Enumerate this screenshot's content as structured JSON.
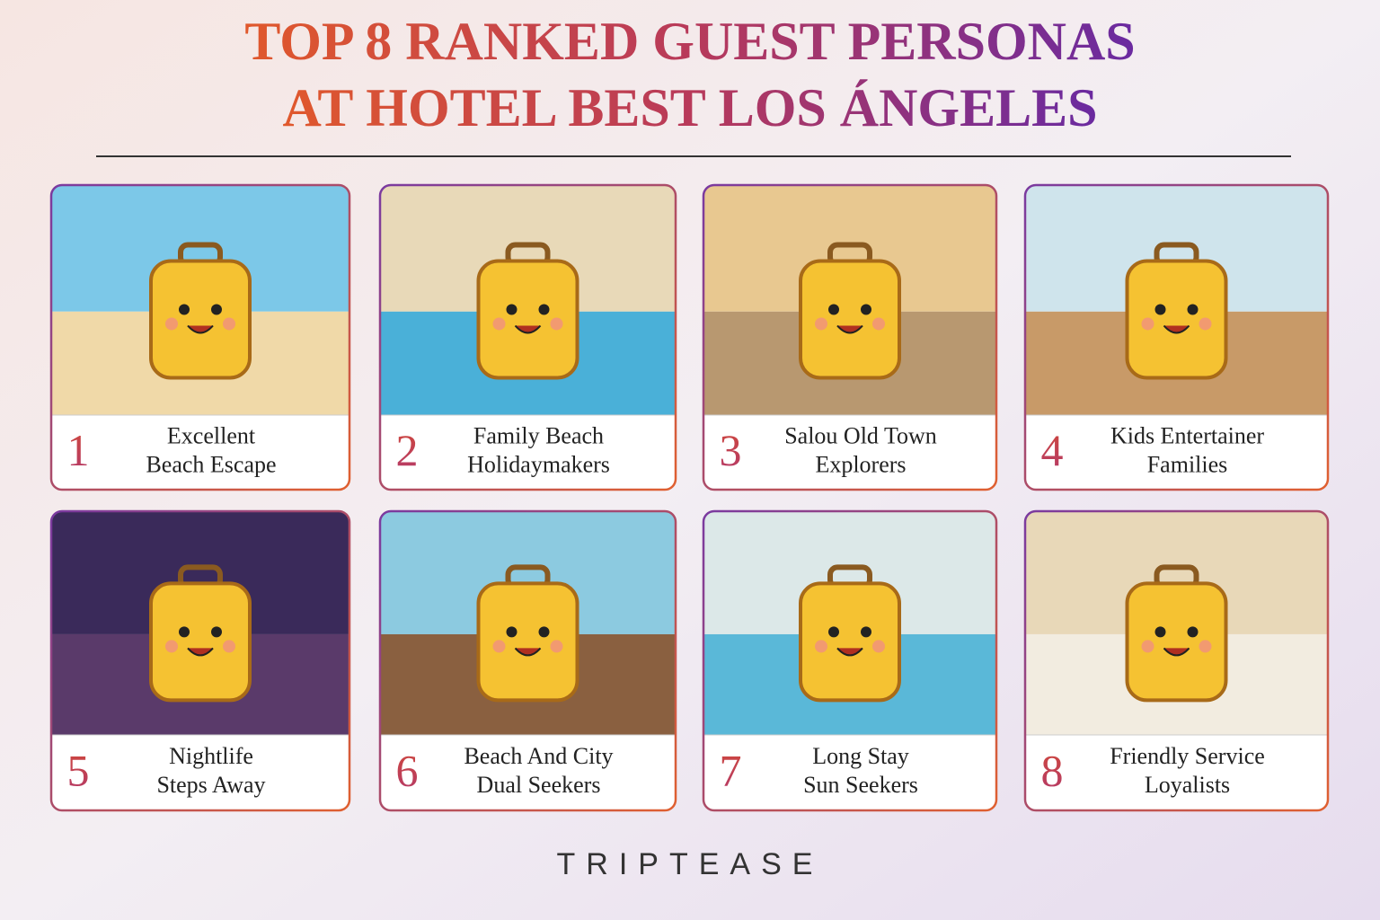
{
  "header": {
    "title_lines": [
      "TOP 8 RANKED GUEST PERSONAS",
      "AT HOTEL BEST LOS ÁNGELES"
    ]
  },
  "personas": [
    {
      "rank": 1,
      "label_lines": [
        "Excellent",
        "Beach Escape"
      ]
    },
    {
      "rank": 2,
      "label_lines": [
        "Family Beach",
        "Holidaymakers"
      ]
    },
    {
      "rank": 3,
      "label_lines": [
        "Salou Old Town",
        "Explorers"
      ]
    },
    {
      "rank": 4,
      "label_lines": [
        "Kids Entertainer",
        "Families"
      ]
    },
    {
      "rank": 5,
      "label_lines": [
        "Nightlife",
        "Steps Away"
      ]
    },
    {
      "rank": 6,
      "label_lines": [
        "Beach And City",
        "Dual Seekers"
      ]
    },
    {
      "rank": 7,
      "label_lines": [
        "Long Stay",
        "Sun Seekers"
      ]
    },
    {
      "rank": 8,
      "label_lines": [
        "Friendly Service",
        "Loyalists"
      ]
    }
  ],
  "footer": {
    "brand": "TRIPTEASE"
  }
}
